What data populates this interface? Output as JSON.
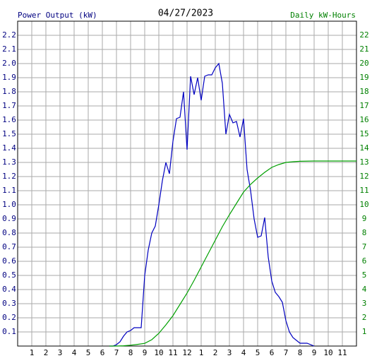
{
  "chart_data": {
    "type": "line",
    "title": "04/27/2023",
    "y_label": "Power Output (kW)",
    "y2_label": "Daily kW-Hours",
    "y_label_color": "#000080",
    "y2_label_color": "#008000",
    "xlim": [
      0,
      24
    ],
    "xticks": [
      1,
      2,
      3,
      4,
      5,
      6,
      7,
      8,
      9,
      10,
      11,
      12,
      {
        "value": 13,
        "label": "1"
      },
      {
        "value": 14,
        "label": "2"
      },
      {
        "value": 15,
        "label": "3"
      },
      {
        "value": 16,
        "label": "4"
      },
      {
        "value": 17,
        "label": "5"
      },
      {
        "value": 18,
        "label": "6"
      },
      {
        "value": 19,
        "label": "7"
      },
      {
        "value": 20,
        "label": "8"
      },
      {
        "value": 21,
        "label": "9"
      },
      {
        "value": 22,
        "label": "10"
      },
      {
        "value": 23,
        "label": "11"
      }
    ],
    "ylim": [
      0,
      2.3
    ],
    "yticks": [
      0.1,
      0.2,
      0.3,
      0.4,
      0.5,
      0.6,
      0.7,
      0.8,
      0.9,
      {
        "value": 1,
        "label": "1.0"
      },
      1.1,
      1.2,
      1.3,
      1.4,
      1.5,
      1.6,
      1.7,
      1.8,
      1.9,
      {
        "value": 2,
        "label": "2.0"
      },
      2.1,
      2.2
    ],
    "y2lim": [
      0,
      23
    ],
    "y2ticks": [
      1,
      2,
      3,
      4,
      5,
      6,
      7,
      8,
      9,
      10,
      11,
      12,
      13,
      14,
      15,
      16,
      17,
      18,
      19,
      20,
      21,
      22
    ],
    "grid": true,
    "series": [
      {
        "name": "Power Output",
        "color": "#0000c0",
        "x": [
          6.5,
          6.75,
          7,
          7.25,
          7.5,
          7.75,
          8,
          8.25,
          8.5,
          8.75,
          9,
          9.25,
          9.5,
          9.75,
          10,
          10.25,
          10.5,
          10.75,
          11,
          11.25,
          11.5,
          11.75,
          12,
          12.25,
          12.5,
          12.75,
          13,
          13.25,
          13.5,
          13.75,
          14,
          14.25,
          14.5,
          14.75,
          15,
          15.25,
          15.5,
          15.75,
          16,
          16.25,
          16.5,
          16.75,
          17,
          17.25,
          17.5,
          17.75,
          18,
          18.25,
          18.5,
          18.75,
          19,
          19.25,
          19.5,
          19.75,
          20,
          20.5,
          21
        ],
        "values": [
          0,
          0,
          0.01,
          0.03,
          0.07,
          0.1,
          0.11,
          0.13,
          0.13,
          0.13,
          0.5,
          0.68,
          0.8,
          0.85,
          1.0,
          1.17,
          1.3,
          1.22,
          1.45,
          1.61,
          1.62,
          1.8,
          1.39,
          1.91,
          1.78,
          1.9,
          1.74,
          1.91,
          1.92,
          1.92,
          1.97,
          2.0,
          1.86,
          1.5,
          1.64,
          1.58,
          1.59,
          1.48,
          1.61,
          1.25,
          1.1,
          0.9,
          0.77,
          0.78,
          0.91,
          0.63,
          0.46,
          0.38,
          0.35,
          0.31,
          0.18,
          0.1,
          0.06,
          0.04,
          0.02,
          0.02,
          0
        ]
      },
      {
        "name": "Daily kW-Hours",
        "color": "#00a000",
        "axis": "y2",
        "x": [
          6.5,
          7,
          7.5,
          8,
          8.5,
          9,
          9.5,
          10,
          10.5,
          11,
          11.5,
          12,
          12.5,
          13,
          13.5,
          14,
          14.5,
          15,
          15.5,
          16,
          16.5,
          17,
          17.5,
          18,
          18.5,
          19,
          19.5,
          20,
          21,
          24
        ],
        "values": [
          0,
          0,
          0.02,
          0.06,
          0.12,
          0.19,
          0.45,
          0.9,
          1.5,
          2.15,
          2.95,
          3.75,
          4.65,
          5.6,
          6.55,
          7.5,
          8.45,
          9.3,
          10.1,
          10.9,
          11.45,
          11.9,
          12.3,
          12.65,
          12.85,
          13.0,
          13.05,
          13.08,
          13.1,
          13.1
        ]
      }
    ]
  }
}
